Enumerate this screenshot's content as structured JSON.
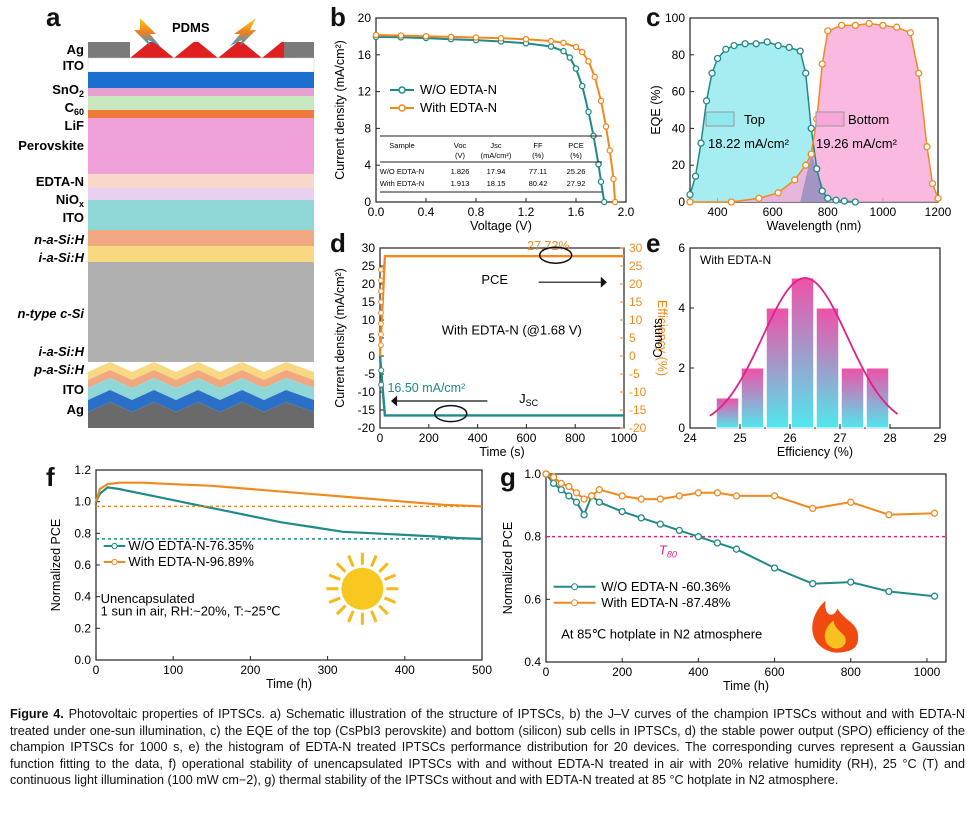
{
  "panel_labels": [
    "a",
    "b",
    "c",
    "d",
    "e",
    "f",
    "g"
  ],
  "panel_a": {
    "pdms_label": "PDMS",
    "layers": [
      "Ag",
      "ITO",
      "SnO2",
      "C60",
      "LiF",
      "Perovskite",
      "EDTA-N",
      "NiOx",
      "ITO",
      "n-a-Si:H",
      "i-a-Si:H",
      "n-type c-Si",
      "i-a-Si:H",
      "p-a-Si:H",
      "ITO",
      "Ag"
    ]
  },
  "chart_data": [
    {
      "id": "b",
      "type": "line",
      "xlabel": "Voltage (V)",
      "ylabel": "Current density (mA/cm²)",
      "xlim": [
        0.0,
        2.0
      ],
      "ylim": [
        0,
        20
      ],
      "xticks": [
        "0.0",
        "0.4",
        "0.8",
        "1.2",
        "1.6",
        "2.0"
      ],
      "yticks": [
        "0",
        "4",
        "8",
        "12",
        "16",
        "20"
      ],
      "legend_position": "center-left",
      "series": [
        {
          "name": "W/O EDTA-N",
          "color": "#1f8a88",
          "x": [
            0,
            0.2,
            0.4,
            0.6,
            0.8,
            1.0,
            1.2,
            1.4,
            1.5,
            1.55,
            1.6,
            1.65,
            1.7,
            1.74,
            1.78,
            1.8,
            1.826
          ],
          "y": [
            17.94,
            17.9,
            17.82,
            17.7,
            17.6,
            17.45,
            17.25,
            16.9,
            16.4,
            15.7,
            14.5,
            12.6,
            9.8,
            7.2,
            4.1,
            2.2,
            0
          ]
        },
        {
          "name": "With EDTA-N",
          "color": "#f08a1e",
          "x": [
            0,
            0.2,
            0.4,
            0.6,
            0.8,
            1.0,
            1.2,
            1.4,
            1.5,
            1.6,
            1.65,
            1.7,
            1.75,
            1.8,
            1.84,
            1.87,
            1.9,
            1.913
          ],
          "y": [
            18.15,
            18.1,
            18.02,
            17.95,
            17.88,
            17.8,
            17.7,
            17.5,
            17.3,
            16.85,
            16.3,
            15.3,
            13.6,
            11.0,
            8.2,
            5.6,
            2.5,
            0
          ]
        }
      ],
      "table": {
        "headers": [
          "Sample",
          "Voc (V)",
          "Jsc (mA/cm²)",
          "FF (%)",
          "PCE (%)"
        ],
        "rows": [
          [
            "W/O EDTA-N",
            "1.826",
            "17.94",
            "77.11",
            "25.26"
          ],
          [
            "With EDTA-N",
            "1.913",
            "18.15",
            "80.42",
            "27.92"
          ]
        ]
      }
    },
    {
      "id": "c",
      "type": "area",
      "xlabel": "Wavelength (nm)",
      "ylabel": "EQE (%)",
      "xlim": [
        300,
        1200
      ],
      "ylim": [
        0,
        100
      ],
      "xticks": [
        "400",
        "600",
        "800",
        "1000",
        "1200"
      ],
      "yticks": [
        "0",
        "20",
        "40",
        "60",
        "80",
        "100"
      ],
      "series": [
        {
          "name": "Top",
          "color": "#1f8a88",
          "fill": "#8fe8ee",
          "annotation": "18.22 mA/cm²",
          "x": [
            300,
            320,
            340,
            360,
            380,
            400,
            430,
            460,
            500,
            540,
            580,
            620,
            660,
            700,
            720,
            740,
            760,
            780,
            800,
            830,
            860,
            900
          ],
          "y": [
            4,
            14,
            32,
            55,
            70,
            78,
            83,
            85,
            86,
            86,
            87,
            85,
            84,
            82,
            70,
            40,
            18,
            6,
            2,
            1,
            0.5,
            0
          ]
        },
        {
          "name": "Bottom",
          "color": "#f08a1e",
          "fill": "#f8a8d8",
          "annotation": "19.26 mA/cm²",
          "x": [
            300,
            450,
            550,
            620,
            680,
            720,
            740,
            760,
            780,
            800,
            850,
            900,
            950,
            1000,
            1050,
            1100,
            1130,
            1160,
            1180,
            1200
          ],
          "y": [
            0,
            0,
            2,
            5,
            12,
            20,
            26,
            45,
            75,
            93,
            96,
            96,
            97,
            96,
            95,
            92,
            70,
            30,
            10,
            2
          ]
        }
      ]
    },
    {
      "id": "d",
      "type": "line",
      "xlabel": "Time (s)",
      "ylabel": "Current density (mA/cm²)",
      "ylabel_right": "Efficiency (%)",
      "xlim": [
        0,
        1000
      ],
      "ylim": [
        -20,
        30
      ],
      "xticks": [
        "0",
        "200",
        "400",
        "600",
        "800",
        "1000"
      ],
      "yticks": [
        "-20",
        "-15",
        "-10",
        "-5",
        "0",
        "5",
        "10",
        "15",
        "20",
        "25",
        "30"
      ],
      "series": [
        {
          "name": "PCE",
          "color": "#f08a1e",
          "x": [
            0,
            20,
            1000
          ],
          "y": [
            0,
            27.72,
            27.72
          ],
          "label": "27.72%"
        },
        {
          "name": "JSC",
          "color": "#1f8a88",
          "x": [
            0,
            20,
            1000
          ],
          "y": [
            0,
            -16.5,
            -16.5
          ],
          "label": "16.50 mA/cm²"
        }
      ],
      "annotation": "With EDTA-N (@1.68 V)"
    },
    {
      "id": "e",
      "type": "bar",
      "xlabel": "Efficiency (%)",
      "ylabel": "Counts",
      "legend": "With EDTA-N",
      "xlim": [
        24,
        29
      ],
      "ylim": [
        0,
        6
      ],
      "xticks": [
        "24",
        "25",
        "26",
        "27",
        "28",
        "29"
      ],
      "yticks": [
        "0",
        "2",
        "4",
        "6"
      ],
      "categories": [
        24.75,
        25.25,
        25.75,
        26.25,
        26.75,
        27.25,
        27.75
      ],
      "values": [
        1,
        2,
        4,
        5,
        4,
        2,
        2
      ]
    },
    {
      "id": "f",
      "type": "line",
      "xlabel": "Time (h)",
      "ylabel": "Normalized PCE",
      "xlim": [
        0,
        500
      ],
      "ylim": [
        0.0,
        1.2
      ],
      "xticks": [
        "0",
        "100",
        "200",
        "300",
        "400",
        "500"
      ],
      "yticks": [
        "0.0",
        "0.2",
        "0.4",
        "0.6",
        "0.8",
        "1.0",
        "1.2"
      ],
      "series": [
        {
          "name": "W/O EDTA-N-76.35%",
          "color": "#1f8a88",
          "x": [
            0,
            5,
            15,
            30,
            50,
            80,
            120,
            160,
            200,
            240,
            280,
            320,
            360,
            400,
            440,
            470,
            500
          ],
          "y": [
            1.0,
            1.05,
            1.09,
            1.08,
            1.06,
            1.03,
            0.99,
            0.95,
            0.91,
            0.87,
            0.84,
            0.81,
            0.8,
            0.79,
            0.78,
            0.77,
            0.765
          ]
        },
        {
          "name": "With EDTA-N-96.89%",
          "color": "#f08a1e",
          "x": [
            0,
            5,
            15,
            30,
            60,
            100,
            150,
            200,
            250,
            300,
            350,
            400,
            450,
            500
          ],
          "y": [
            1.0,
            1.08,
            1.11,
            1.12,
            1.12,
            1.11,
            1.1,
            1.08,
            1.06,
            1.04,
            1.02,
            1.0,
            0.98,
            0.97
          ]
        }
      ],
      "note": [
        "Unencapsulated",
        "1 sun in air, RH:~20%, T:~25℃"
      ]
    },
    {
      "id": "g",
      "type": "line",
      "xlabel": "Time (h)",
      "ylabel": "Normalized PCE",
      "xlim": [
        0,
        1050
      ],
      "ylim": [
        0.4,
        1.0
      ],
      "xticks": [
        "0",
        "200",
        "400",
        "600",
        "800",
        "1000"
      ],
      "yticks": [
        "0.4",
        "0.6",
        "0.8",
        "1.0"
      ],
      "series": [
        {
          "name": "W/O EDTA-N -60.36%",
          "color": "#1f8a88",
          "x": [
            0,
            20,
            40,
            60,
            80,
            100,
            120,
            140,
            200,
            250,
            300,
            350,
            400,
            450,
            500,
            600,
            700,
            800,
            900,
            1020
          ],
          "y": [
            1.0,
            0.97,
            0.95,
            0.93,
            0.91,
            0.87,
            0.93,
            0.91,
            0.88,
            0.86,
            0.84,
            0.82,
            0.8,
            0.78,
            0.76,
            0.7,
            0.65,
            0.655,
            0.625,
            0.61
          ]
        },
        {
          "name": "With EDTA-N -87.48%",
          "color": "#f08a1e",
          "x": [
            0,
            20,
            40,
            60,
            80,
            100,
            120,
            140,
            200,
            250,
            300,
            350,
            400,
            450,
            500,
            600,
            700,
            800,
            900,
            1020
          ],
          "y": [
            1.0,
            0.99,
            0.97,
            0.96,
            0.94,
            0.92,
            0.93,
            0.95,
            0.93,
            0.92,
            0.92,
            0.93,
            0.94,
            0.94,
            0.93,
            0.93,
            0.89,
            0.91,
            0.87,
            0.875
          ]
        }
      ],
      "reference_line": {
        "y": 0.8,
        "label": "T80",
        "color": "#e0208a"
      },
      "note": "At 85℃ hotplate in N2 atmosphere"
    }
  ],
  "caption": {
    "label": "Figure 4.",
    "text": "Photovoltaic properties of IPTSCs. a) Schematic illustration of the structure of IPTSCs, b) the J–V curves of the champion IPTSCs without and with EDTA-N treated under one-sun illumination, c) the EQE of the top (CsPbI3 perovskite) and bottom (silicon) sub cells in IPTSCs, d) the stable power output (SPO) efficiency of the champion IPTSCs for 1000 s, e) the histogram of EDTA-N treated IPTSCs performance distribution for 20 devices. The corresponding curves represent a Gaussian function fitting to the data, f) operational stability of unencapsulated IPTSCs with and without EDTA-N treated in air with 20% relative humidity (RH), 25 °C (T) and continuous light illumination (100 mW cm−2), g) thermal stability of the IPTSCs without and with EDTA-N treated at 85 °C hotplate in N2 atmosphere."
  }
}
